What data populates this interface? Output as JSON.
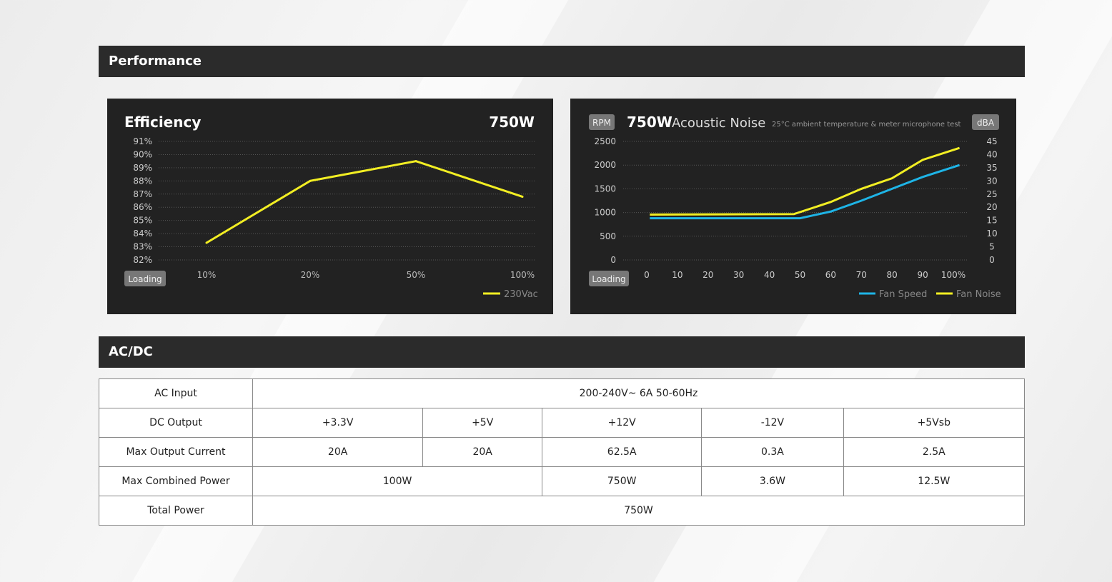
{
  "sections": {
    "performance": "Performance",
    "acdc": "AC/DC"
  },
  "chart_data": [
    {
      "type": "line",
      "title": "Efficiency",
      "model": "750W",
      "xlabel": "Loading",
      "ylabel": "",
      "categories": [
        "10%",
        "20%",
        "50%",
        "100%"
      ],
      "yticks": [
        "82%",
        "83%",
        "84%",
        "85%",
        "86%",
        "87%",
        "88%",
        "89%",
        "90%",
        "91%"
      ],
      "ylim": [
        82,
        91
      ],
      "series": [
        {
          "name": "230Vac",
          "color": "#f2ee23",
          "values": [
            83.3,
            88.0,
            89.5,
            86.8
          ]
        }
      ],
      "legend": "bottom-right",
      "grid": true
    },
    {
      "type": "line",
      "title": "Acoustic Noise",
      "model": "750W",
      "subtitle": "25°C ambient temperature & meter microphone test",
      "xlabel": "Loading",
      "ylabel": "RPM",
      "y2label": "dBA",
      "x": [
        0,
        10,
        20,
        30,
        40,
        50,
        60,
        70,
        80,
        90,
        100
      ],
      "xticks": [
        "0",
        "10",
        "20",
        "30",
        "40",
        "50",
        "60",
        "70",
        "80",
        "90",
        "100%"
      ],
      "yticks": [
        "0",
        "500",
        "1000",
        "1500",
        "2000",
        "2500"
      ],
      "y2ticks": [
        "0",
        "5",
        "10",
        "15",
        "20",
        "25",
        "30",
        "35",
        "40",
        "45"
      ],
      "ylim": [
        0,
        2500
      ],
      "y2lim": [
        0,
        45
      ],
      "series": [
        {
          "name": "Fan Speed",
          "color": "#1eb4e6",
          "axis": "left",
          "x": [
            1,
            50,
            60,
            70,
            80,
            90,
            102
          ],
          "values": [
            880,
            880,
            1020,
            1250,
            1500,
            1750,
            2000
          ]
        },
        {
          "name": "Fan Noise",
          "color": "#f2ee23",
          "axis": "right",
          "x": [
            1,
            48,
            60,
            70,
            80,
            90,
            102
          ],
          "values": [
            17.2,
            17.4,
            22,
            27,
            31,
            38,
            42.5
          ]
        }
      ],
      "legend": "bottom-right",
      "grid": true
    }
  ],
  "table": {
    "rows": [
      {
        "label": "AC Input",
        "cells": [
          "200-240V~ 6A 50-60Hz"
        ]
      },
      {
        "label": "DC Output",
        "cells": [
          "+3.3V",
          "+5V",
          "+12V",
          "-12V",
          "+5Vsb"
        ]
      },
      {
        "label": "Max Output Current",
        "cells": [
          "20A",
          "20A",
          "62.5A",
          "0.3A",
          "2.5A"
        ]
      },
      {
        "label": "Max Combined Power",
        "cells": [
          "100W",
          "750W",
          "3.6W",
          "12.5W"
        ]
      },
      {
        "label": "Total Power",
        "cells": [
          "750W"
        ]
      }
    ]
  }
}
